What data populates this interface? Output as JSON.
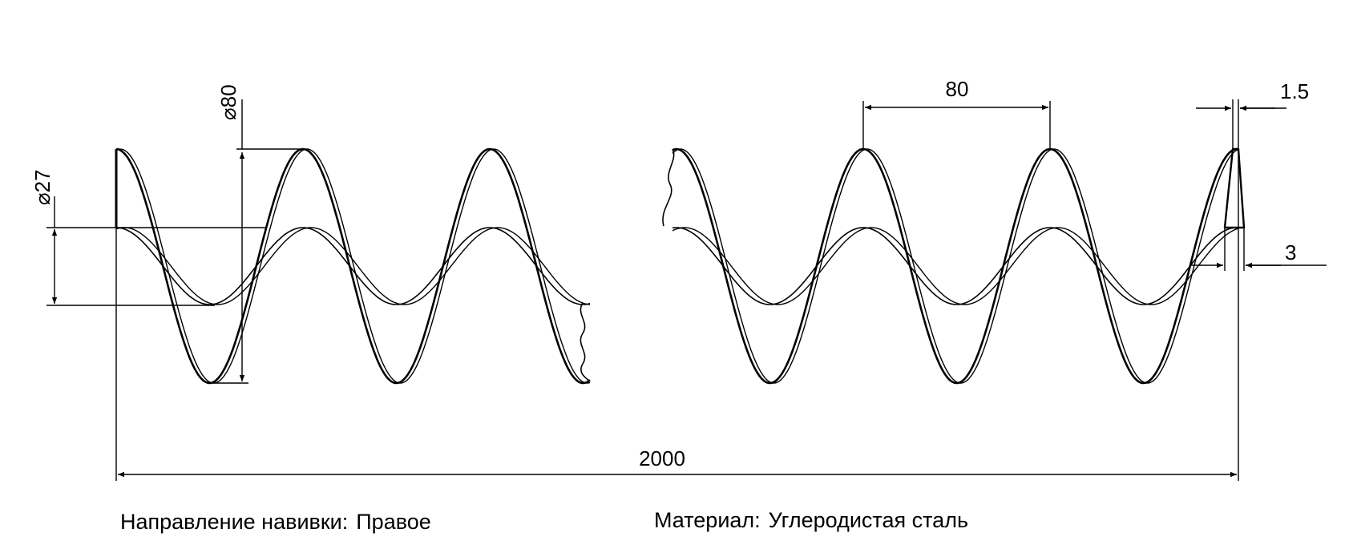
{
  "dimensions": {
    "outer_diameter": "80",
    "inner_diameter": "27",
    "pitch": "80",
    "thickness_edge": "1.5",
    "thickness_base": "3",
    "total_length": "2000",
    "diameter_symbol": "⌀"
  },
  "notes": {
    "winding_label": "Направление навивки:",
    "winding_value": "Правое",
    "material_label": "Материал:",
    "material_value": "Углеродистая сталь"
  },
  "colors": {
    "line": "#000000",
    "background": "#ffffff"
  }
}
